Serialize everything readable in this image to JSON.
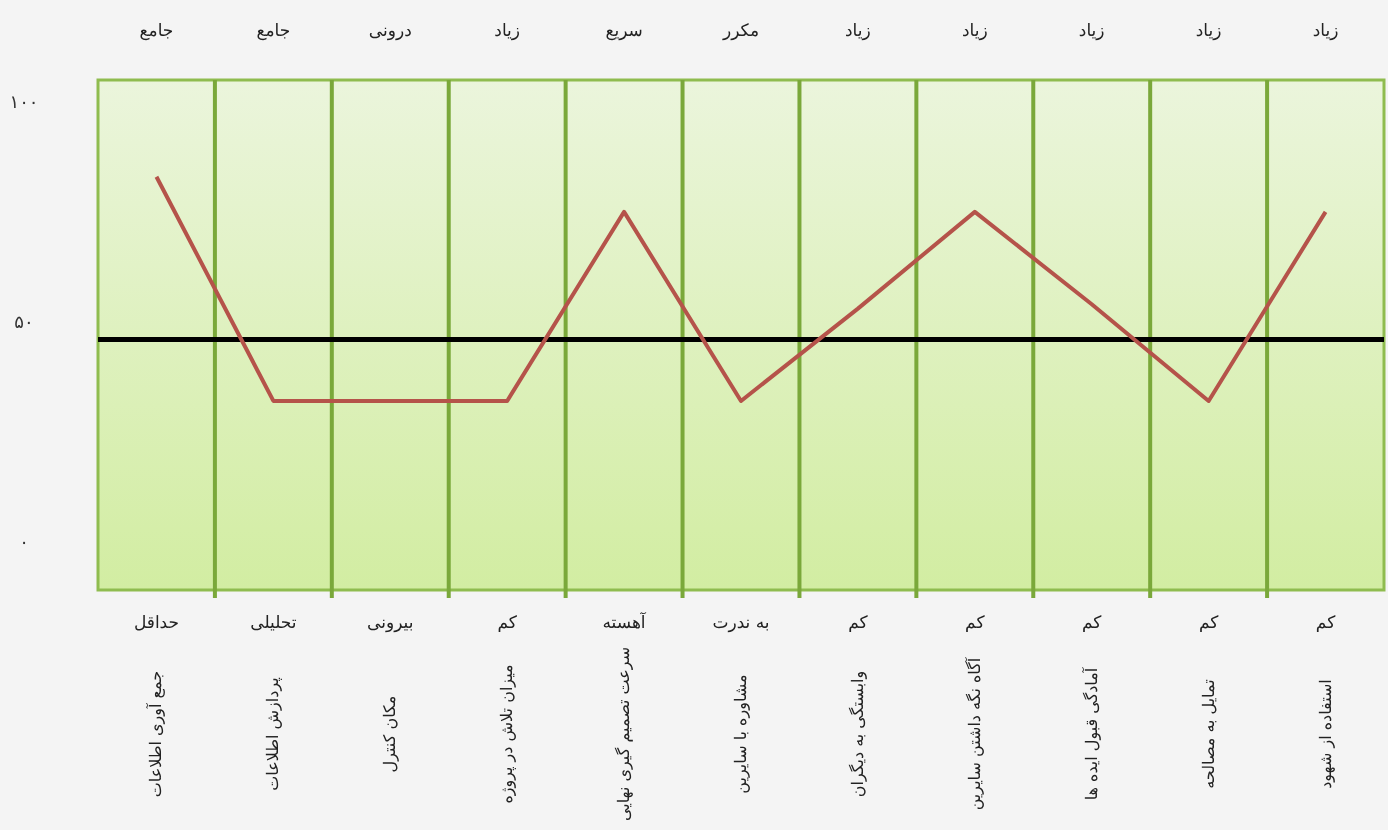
{
  "chart_data": {
    "type": "line",
    "categories": [
      "جمع آوری اطلاعات",
      "پردازش اطلاعات",
      "مکان کنترل",
      "میزان تلاش در پروژه",
      "سرعت تصمیم گیری نهایی",
      "مشاوره با سایرین",
      "وابستگی به دیگران",
      "آگاه نگه داشتن سایرین",
      "آمادگی قبول ایده ها",
      "تمایل به مصالحه",
      "استفاده از شهود"
    ],
    "series": [
      {
        "color": "#b5534a",
        "values": [
          83,
          32,
          32,
          32,
          75,
          32,
          53,
          75,
          54,
          32,
          75
        ]
      }
    ],
    "ylim": [
      -11,
      105
    ],
    "yticks": [
      {
        "value": 0,
        "label": "۰"
      },
      {
        "value": 50,
        "label": "۵۰"
      },
      {
        "value": 100,
        "label": "۱۰۰"
      }
    ],
    "ref_lines": [
      {
        "axis": "y",
        "value": 46,
        "color": "#000000"
      }
    ],
    "grid": "x",
    "annotations": [
      "جامع",
      "جامع",
      "درونی",
      "زیاد",
      "سریع",
      "مکرر",
      "زیاد",
      "زیاد",
      "زیاد",
      "زیاد",
      "زیاد",
      "حداقل",
      "تحلیلی",
      "بیرونی",
      "کم",
      "آهسته",
      "به ندرت",
      "کم",
      "کم",
      "کم",
      "کم",
      "کم"
    ]
  }
}
